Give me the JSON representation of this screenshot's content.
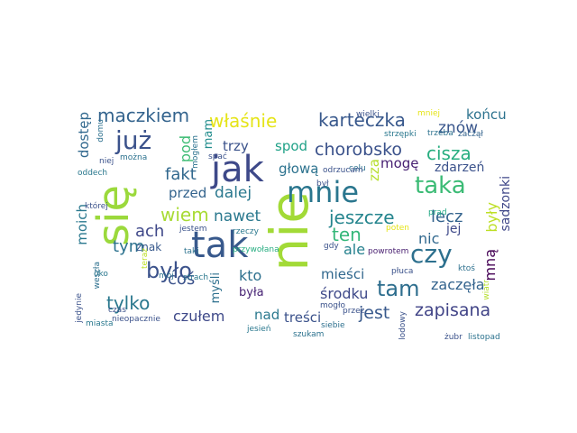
{
  "words": [
    {
      "text": "się",
      "color": "#9bd93c"
    },
    {
      "text": "nie",
      "color": "#a2da37"
    },
    {
      "text": "jak",
      "color": "#3e4989"
    },
    {
      "text": "tak",
      "color": "#38598c"
    },
    {
      "text": "mnie",
      "color": "#2a768e"
    },
    {
      "text": "taka",
      "color": "#3bbb75"
    },
    {
      "text": "czy",
      "color": "#2d708e"
    },
    {
      "text": "już",
      "color": "#3b528b"
    },
    {
      "text": "było",
      "color": "#3b528b"
    },
    {
      "text": "tam",
      "color": "#2e6e8e"
    },
    {
      "text": "maczkiem",
      "color": "#33638d"
    },
    {
      "text": "karteczka",
      "color": "#38588c"
    },
    {
      "text": "jeszcze",
      "color": "#25858e"
    },
    {
      "text": "chorobsko",
      "color": "#3b528b"
    },
    {
      "text": "zapisana",
      "color": "#414487"
    },
    {
      "text": "cisza",
      "color": "#28ae80"
    },
    {
      "text": "ten",
      "color": "#35b779"
    },
    {
      "text": "tylko",
      "color": "#2a788e"
    },
    {
      "text": "jest",
      "color": "#38598c"
    },
    {
      "text": "wiem",
      "color": "#a8db34"
    },
    {
      "text": "fakt",
      "color": "#31688e"
    },
    {
      "text": "lecz",
      "color": "#33638d"
    },
    {
      "text": "właśnie",
      "color": "#e5e419"
    },
    {
      "text": "pod",
      "color": "#3dbc74"
    },
    {
      "text": "zaczęła",
      "color": "#33638d"
    },
    {
      "text": "czułem",
      "color": "#3e4989"
    },
    {
      "text": "ale",
      "color": "#26818e"
    },
    {
      "text": "dalej",
      "color": "#2a788e"
    },
    {
      "text": "ach",
      "color": "#3f4889"
    },
    {
      "text": "mam",
      "color": "#228d8d"
    },
    {
      "text": "tym",
      "color": "#2c728e"
    },
    {
      "text": "coś",
      "color": "#3b528b"
    },
    {
      "text": "moich",
      "color": "#2a788e"
    },
    {
      "text": "znów",
      "color": "#39568c"
    },
    {
      "text": "dostęp",
      "color": "#31688e"
    },
    {
      "text": "nawet",
      "color": "#2a788e"
    },
    {
      "text": "sadzonki",
      "color": "#3f4788"
    },
    {
      "text": "kto",
      "color": "#2d708e"
    },
    {
      "text": "mną",
      "color": "#440154"
    },
    {
      "text": "były",
      "color": "#bddf26"
    },
    {
      "text": "nic",
      "color": "#31688e"
    },
    {
      "text": "końcu",
      "color": "#2c728e"
    },
    {
      "text": "trzy",
      "color": "#3b528b"
    },
    {
      "text": "spod",
      "color": "#1fa187"
    },
    {
      "text": "przed",
      "color": "#33638d"
    },
    {
      "text": "mogę",
      "color": "#482173"
    },
    {
      "text": "zza",
      "color": "#b5de2b"
    },
    {
      "text": "głową",
      "color": "#2c728e"
    },
    {
      "text": "zdarzeń",
      "color": "#3b528b"
    },
    {
      "text": "jej",
      "color": "#3e4989"
    },
    {
      "text": "środku",
      "color": "#3e4989"
    },
    {
      "text": "mieści",
      "color": "#31688e"
    },
    {
      "text": "była",
      "color": "#482475"
    },
    {
      "text": "myśli",
      "color": "#2d708e"
    },
    {
      "text": "nad",
      "color": "#2a788e"
    },
    {
      "text": "treści",
      "color": "#3b528b"
    },
    {
      "text": "znak",
      "color": "#38598c"
    },
    {
      "text": "był",
      "color": "#3b528b"
    },
    {
      "text": "rzeczy",
      "color": "#2a788e"
    },
    {
      "text": "przywołana",
      "color": "#27ad81"
    },
    {
      "text": "szukam",
      "color": "#2c728e"
    },
    {
      "text": "gdy",
      "color": "#3b528b"
    },
    {
      "text": "powrotem",
      "color": "#481f70"
    },
    {
      "text": "płuca",
      "color": "#3b528b"
    },
    {
      "text": "ktoś",
      "color": "#2d708e"
    },
    {
      "text": "wiatr",
      "color": "#b5de2b"
    },
    {
      "text": "siebie",
      "color": "#2d708e"
    },
    {
      "text": "przez",
      "color": "#3b528b"
    },
    {
      "text": "żubr",
      "color": "#3b528b"
    },
    {
      "text": "listopad",
      "color": "#2c728e"
    },
    {
      "text": "mogło",
      "color": "#3b528b"
    },
    {
      "text": "jesień",
      "color": "#2a788e"
    },
    {
      "text": "lodowy",
      "color": "#3b528b"
    },
    {
      "text": "celu",
      "color": "#2c728e"
    },
    {
      "text": "odrzucam",
      "color": "#3b528b"
    },
    {
      "text": "prąd",
      "color": "#22a884"
    },
    {
      "text": "poten",
      "color": "#e5e419"
    },
    {
      "text": "wielki",
      "color": "#3b528b"
    },
    {
      "text": "mniej",
      "color": "#e5e419"
    },
    {
      "text": "strzępki",
      "color": "#2a788e"
    },
    {
      "text": "trzeba",
      "color": "#2c728e"
    },
    {
      "text": "zaczął",
      "color": "#33638d"
    },
    {
      "text": "spać",
      "color": "#3b528b"
    },
    {
      "text": "taki",
      "color": "#2c728e"
    },
    {
      "text": "jestem",
      "color": "#3b528b"
    },
    {
      "text": "teraz",
      "color": "#bddf26"
    },
    {
      "text": "strach",
      "color": "#2a788e"
    },
    {
      "text": "mój",
      "color": "#2d708e"
    },
    {
      "text": "czas",
      "color": "#3b528b"
    },
    {
      "text": "oko",
      "color": "#2a788e"
    },
    {
      "text": "jedynie",
      "color": "#3b528b"
    },
    {
      "text": "miasta",
      "color": "#2a788e"
    },
    {
      "text": "nieopacznie",
      "color": "#3b528b"
    },
    {
      "text": "mogłem",
      "color": "#2c728e"
    },
    {
      "text": "domu",
      "color": "#2d708e"
    },
    {
      "text": "można",
      "color": "#2c728e"
    },
    {
      "text": "niej",
      "color": "#3b528b"
    },
    {
      "text": "oddech",
      "color": "#2a788e"
    },
    {
      "text": "której",
      "color": "#3b528b"
    },
    {
      "text": "weszła",
      "color": "#2d708e"
    }
  ]
}
